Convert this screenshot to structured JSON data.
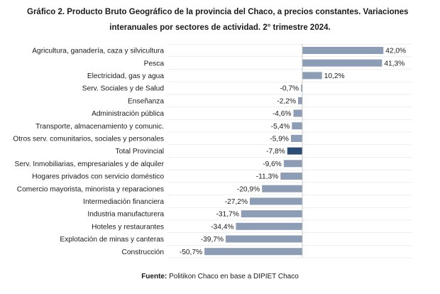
{
  "title_line1": "Gráfico 2. Producto Bruto Geográfico de la provincia del Chaco, a precios constantes. Variaciones",
  "title_line2": "interanuales por sectores de actividad. 2° trimestre 2024.",
  "footer": {
    "label": "Fuente:",
    "text": " Politikon Chaco en base a DIPIET Chaco"
  },
  "colors": {
    "bar": "#8c9db5",
    "highlight": "#2b4d75",
    "axis": "#bfbfbf",
    "grid": "#e3e3e3"
  },
  "chart_data": {
    "type": "bar",
    "orientation": "horizontal",
    "unit": "%",
    "grid": true,
    "categories": [
      "Agricultura, ganadería, caza y silvicultura",
      "Pesca",
      "Electricidad, gas y agua",
      "Serv. Sociales y de Salud",
      "Enseñanza",
      "Administración pública",
      "Transporte, almacenamiento y comunic.",
      "Otros serv. comunitarios, sociales y personales",
      "Total Provincial",
      "Serv. Inmobiliarias, empresariales y de alquiler",
      "Hogares privados con servicio doméstico",
      "Comercio mayorista, minorista y reparaciones",
      "Intermediación financiera",
      "Industria manufacturera",
      "Hoteles y restaurantes",
      "Explotación de minas y canteras",
      "Construcción"
    ],
    "values": [
      42.0,
      41.3,
      10.2,
      -0.7,
      -2.2,
      -4.6,
      -5.4,
      -5.9,
      -7.8,
      -9.6,
      -11.3,
      -20.9,
      -27.2,
      -31.7,
      -34.4,
      -39.7,
      -50.7
    ],
    "value_labels": [
      "42,0%",
      "41,3%",
      "10,2%",
      "-0,7%",
      "-2,2%",
      "-4,6%",
      "-5,4%",
      "-5,9%",
      "-7,8%",
      "-9,6%",
      "-11,3%",
      "-20,9%",
      "-27,2%",
      "-31,7%",
      "-34,4%",
      "-39,7%",
      "-50,7%"
    ],
    "highlight_category": "Total Provincial"
  }
}
